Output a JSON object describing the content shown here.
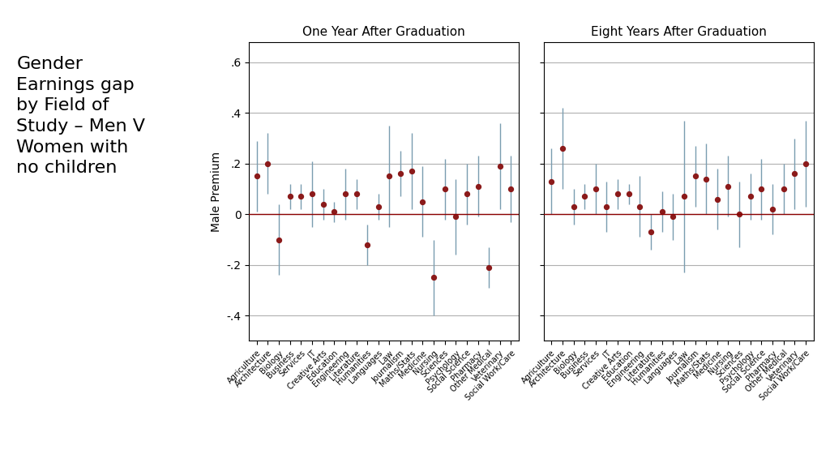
{
  "title": "Gender\nEarnings gap\nby Field of\nStudy – Men V\nWomen with\nno children",
  "chart_data": [
    {
      "type": "scatter",
      "title": "One Year After Graduation",
      "ylabel": "Male Premium",
      "categories": [
        "Agriculture",
        "Architecture",
        "Biology",
        "Business",
        "Services",
        "IT",
        "Creative Arts",
        "Education",
        "Engineering",
        "Literature",
        "Humanities",
        "Languages",
        "Law",
        "Journalism",
        "Maths/Stats",
        "Medicine",
        "Nursing",
        "Sciences",
        "Psychology",
        "Social Science",
        "Pharmacy",
        "Other Medical",
        "Veterinary",
        "Social Work/Care"
      ],
      "values": [
        0.15,
        0.2,
        -0.1,
        0.07,
        0.07,
        0.08,
        0.04,
        0.01,
        0.08,
        0.08,
        -0.12,
        0.03,
        0.15,
        0.16,
        0.17,
        0.05,
        -0.25,
        0.1,
        -0.01,
        0.08,
        0.11,
        -0.21,
        0.19,
        0.1
      ],
      "err_low": [
        0.14,
        0.12,
        0.14,
        0.05,
        0.05,
        0.13,
        0.06,
        0.04,
        0.1,
        0.06,
        0.08,
        0.05,
        0.2,
        0.09,
        0.15,
        0.14,
        0.15,
        0.12,
        0.15,
        0.12,
        0.12,
        0.08,
        0.17,
        0.13
      ],
      "err_high": [
        0.14,
        0.12,
        0.14,
        0.05,
        0.05,
        0.13,
        0.06,
        0.04,
        0.1,
        0.06,
        0.08,
        0.05,
        0.2,
        0.09,
        0.15,
        0.14,
        0.15,
        0.12,
        0.15,
        0.12,
        0.12,
        0.08,
        0.17,
        0.13
      ],
      "color": "#8B1A1A",
      "err_color": "#7a9db0",
      "ref_line": {
        "value": 0,
        "color": "#8B0000"
      },
      "ylim": [
        -0.5,
        0.68
      ],
      "yticks": [
        {
          "value": -0.4,
          "label": "-.4"
        },
        {
          "value": -0.2,
          "label": "-.2"
        },
        0,
        {
          "value": 0.2,
          "label": ".2"
        },
        {
          "value": 0.4,
          "label": ".4"
        },
        {
          "value": 0.6,
          "label": ".6"
        }
      ],
      "grid": true
    },
    {
      "type": "scatter",
      "title": "Eight Years After Graduation",
      "categories": [
        "Agriculture",
        "Architecture",
        "Biology",
        "Business",
        "Services",
        "IT",
        "Creative Arts",
        "Education",
        "Engineering",
        "Literature",
        "Humanities",
        "Languages",
        "Law",
        "Journalism",
        "Maths/Stats",
        "Medicine",
        "Nursing",
        "Sciences",
        "Psychology",
        "Social Science",
        "Pharmacy",
        "Other Medical",
        "Veterinary",
        "Social Work/Care"
      ],
      "values": [
        0.13,
        0.26,
        0.03,
        0.07,
        0.1,
        0.03,
        0.08,
        0.08,
        0.03,
        -0.07,
        0.01,
        -0.01,
        0.07,
        0.15,
        0.14,
        0.06,
        0.11,
        0.0,
        0.07,
        0.1,
        0.02,
        0.1,
        0.16,
        0.2
      ],
      "err_low": [
        0.13,
        0.16,
        0.07,
        0.05,
        0.1,
        0.1,
        0.06,
        0.04,
        0.12,
        0.07,
        0.08,
        0.09,
        0.3,
        0.12,
        0.14,
        0.12,
        0.12,
        0.13,
        0.09,
        0.12,
        0.1,
        0.1,
        0.14,
        0.17
      ],
      "err_high": [
        0.13,
        0.16,
        0.07,
        0.05,
        0.1,
        0.1,
        0.06,
        0.04,
        0.12,
        0.07,
        0.08,
        0.09,
        0.3,
        0.12,
        0.14,
        0.12,
        0.12,
        0.13,
        0.09,
        0.12,
        0.1,
        0.1,
        0.14,
        0.17
      ],
      "color": "#8B1A1A",
      "err_color": "#7a9db0",
      "ref_line": {
        "value": 0,
        "color": "#8B0000"
      },
      "ylim": [
        -0.5,
        0.68
      ],
      "yticks": [
        {
          "value": -0.4,
          "label": "-.4"
        },
        {
          "value": -0.2,
          "label": "-.2"
        },
        0,
        {
          "value": 0.2,
          "label": ".2"
        },
        {
          "value": 0.4,
          "label": ".4"
        },
        {
          "value": 0.6,
          "label": ".6"
        }
      ],
      "grid": true,
      "tick_labels": "x"
    }
  ]
}
